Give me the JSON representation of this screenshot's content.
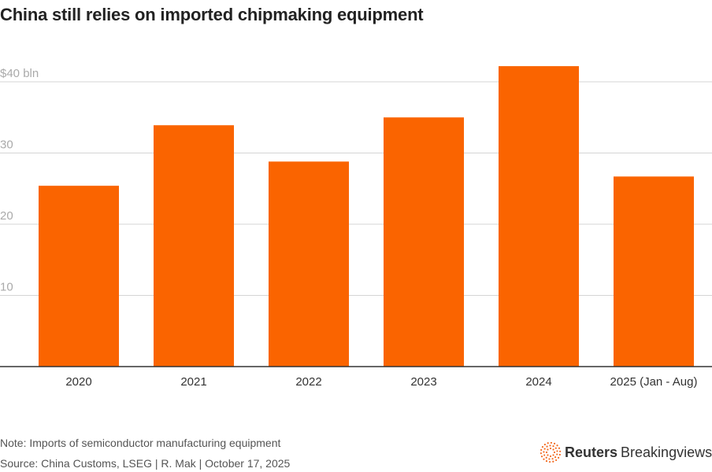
{
  "chart_data": {
    "type": "bar",
    "title": "China still relies on imported chipmaking equipment",
    "categories": [
      "2020",
      "2021",
      "2022",
      "2023",
      "2024",
      "2025 (Jan - Aug)"
    ],
    "values": [
      25.4,
      33.9,
      28.8,
      35.0,
      42.2,
      26.7
    ],
    "ylim": [
      0,
      42.5
    ],
    "yticks": [
      10,
      20,
      30,
      40
    ],
    "ytick_labels": [
      "10",
      "20",
      "30",
      "$40 bln"
    ],
    "ylabel": "",
    "xlabel": "",
    "grid": true,
    "bar_color": "#fa6400"
  },
  "note": "Note: Imports of semiconductor manufacturing equipment",
  "source": "Source: China Customs, LSEG | R. Mak | October 17, 2025",
  "logo": {
    "brand": "Reuters",
    "product": "Breakingviews"
  }
}
